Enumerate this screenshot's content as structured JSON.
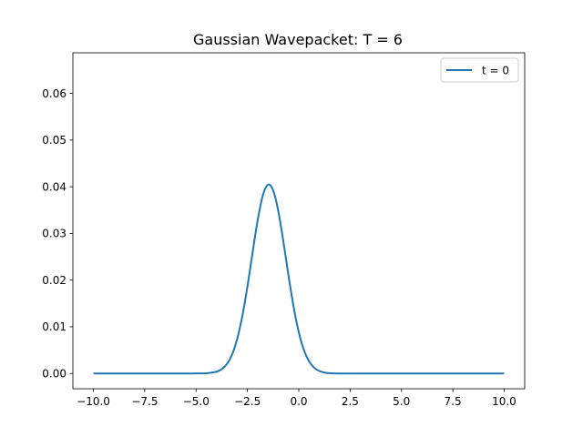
{
  "chart_data": {
    "type": "line",
    "title": "Gaussian Wavepacket: T = 6",
    "xlabel": "",
    "ylabel": "",
    "xlim": [
      -11.0,
      11.0
    ],
    "ylim": [
      -0.00327,
      0.0687
    ],
    "x_ticks": [
      -10.0,
      -7.5,
      -5.0,
      -2.5,
      0.0,
      2.5,
      5.0,
      7.5,
      10.0
    ],
    "x_tick_labels": [
      "−10.0",
      "−7.5",
      "−5.0",
      "−2.5",
      "0.0",
      "2.5",
      "5.0",
      "7.5",
      "10.0"
    ],
    "y_ticks": [
      0.0,
      0.01,
      0.02,
      0.03,
      0.04,
      0.05,
      0.06
    ],
    "y_tick_labels": [
      "0.00",
      "0.01",
      "0.02",
      "0.03",
      "0.04",
      "0.05",
      "0.06"
    ],
    "grid": false,
    "legend": {
      "position": "top-right",
      "entries": [
        "t = 0"
      ]
    },
    "series": [
      {
        "name": "t = 0",
        "color": "#1f77b4",
        "x": [
          -10.0,
          -6.0,
          -5.0,
          -4.5,
          -4.0,
          -3.75,
          -3.5,
          -3.25,
          -3.0,
          -2.75,
          -2.5,
          -2.25,
          -2.0,
          -1.75,
          -1.5,
          -1.25,
          -1.0,
          -0.75,
          -0.5,
          -0.25,
          0.0,
          0.25,
          0.5,
          0.75,
          1.0,
          1.25,
          1.5,
          1.75,
          2.0,
          2.5,
          3.0,
          3.5,
          4.0,
          5.0,
          10.0
        ],
        "y": [
          0.0,
          0.0,
          1e-05,
          5e-05,
          0.00039,
          0.00093,
          0.00203,
          0.00405,
          0.00738,
          0.01227,
          0.01864,
          0.02588,
          0.03287,
          0.03815,
          0.04045,
          0.03924,
          0.03483,
          0.02825,
          0.02097,
          0.01423,
          0.00883,
          0.00501,
          0.0026,
          0.00123,
          0.00053,
          0.0002,
          7e-05,
          2e-05,
          0.0,
          0.0,
          0.0,
          0.0,
          0.0,
          0.0,
          0.0
        ]
      }
    ]
  }
}
